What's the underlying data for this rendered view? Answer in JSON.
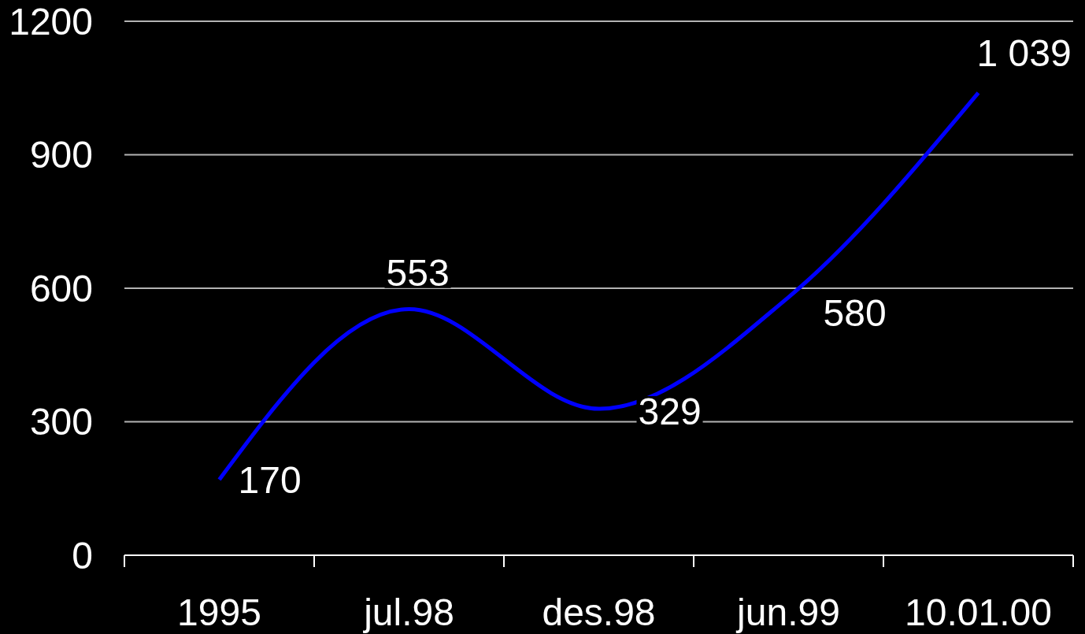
{
  "chart_data": {
    "type": "line",
    "categories": [
      "1995",
      "jul.98",
      "des.98",
      "jun.99",
      "10.01.00"
    ],
    "series": [
      {
        "color": "#0000ff",
        "values": [
          170,
          553,
          329,
          580,
          1039
        ],
        "value_labels": [
          "170",
          "553",
          "329",
          "580",
          "1 039"
        ]
      }
    ],
    "ylim": [
      0,
      1200
    ],
    "yticks": [
      0,
      300,
      600,
      900,
      1200
    ],
    "grid": "y"
  }
}
